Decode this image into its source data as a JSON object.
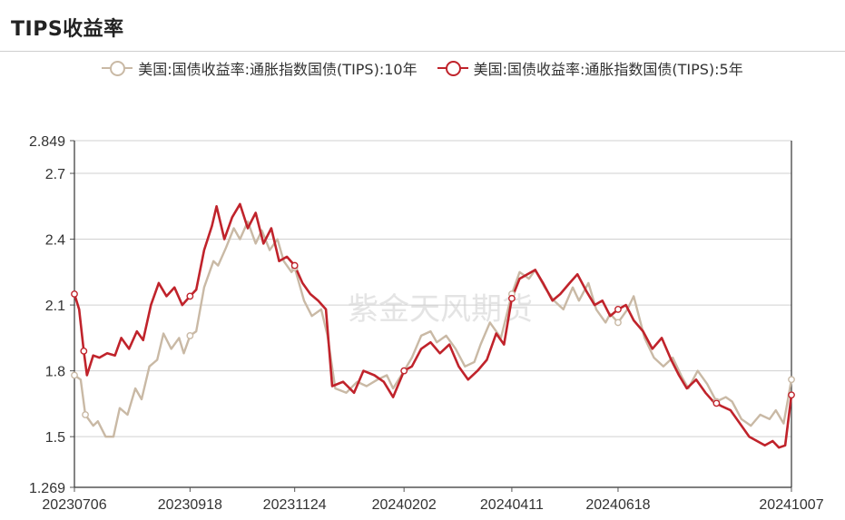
{
  "title": "TIPS收益率",
  "legend": [
    {
      "label": "美国:国债收益率:通胀指数国债(TIPS):10年",
      "color": "#c9b9a5"
    },
    {
      "label": "美国:国债收益率:通胀指数国债(TIPS):5年",
      "color": "#c0232b"
    }
  ],
  "watermark": "紫金天风期货",
  "chart_data": {
    "type": "line",
    "x_ticks": [
      "20230706",
      "20230918",
      "20231124",
      "20240202",
      "20240411",
      "20240618",
      "20241007"
    ],
    "y_ticks": [
      "2.849",
      "2.7",
      "2.4",
      "2.1",
      "1.8",
      "1.5",
      "1.269"
    ],
    "ylim": [
      1.269,
      2.849
    ],
    "xlim": [
      "20230706",
      "20241007"
    ],
    "grid": true,
    "legend_position": "top",
    "series": [
      {
        "name": "美国:国债收益率:通胀指数国债(TIPS):10年",
        "color": "#c9b9a5",
        "points": [
          [
            "20230706",
            1.78
          ],
          [
            "20230710",
            1.76
          ],
          [
            "20230713",
            1.6
          ],
          [
            "20230718",
            1.55
          ],
          [
            "20230721",
            1.57
          ],
          [
            "20230726",
            1.5
          ],
          [
            "20230731",
            1.5
          ],
          [
            "20230804",
            1.63
          ],
          [
            "20230809",
            1.6
          ],
          [
            "20230814",
            1.72
          ],
          [
            "20230818",
            1.67
          ],
          [
            "20230823",
            1.82
          ],
          [
            "20230828",
            1.85
          ],
          [
            "20230901",
            1.97
          ],
          [
            "20230906",
            1.9
          ],
          [
            "20230911",
            1.95
          ],
          [
            "20230914",
            1.88
          ],
          [
            "20230918",
            1.96
          ],
          [
            "20230922",
            1.98
          ],
          [
            "20230927",
            2.18
          ],
          [
            "20231003",
            2.3
          ],
          [
            "20231006",
            2.28
          ],
          [
            "20231011",
            2.36
          ],
          [
            "20231016",
            2.45
          ],
          [
            "20231020",
            2.4
          ],
          [
            "20231025",
            2.48
          ],
          [
            "20231030",
            2.38
          ],
          [
            "20231103",
            2.44
          ],
          [
            "20231108",
            2.35
          ],
          [
            "20231113",
            2.4
          ],
          [
            "20231117",
            2.3
          ],
          [
            "20231122",
            2.25
          ],
          [
            "20231124",
            2.27
          ],
          [
            "20231130",
            2.12
          ],
          [
            "20231205",
            2.05
          ],
          [
            "20231211",
            2.08
          ],
          [
            "20231215",
            1.96
          ],
          [
            "20231220",
            1.72
          ],
          [
            "20231227",
            1.7
          ],
          [
            "20240103",
            1.75
          ],
          [
            "20240109",
            1.73
          ],
          [
            "20240116",
            1.76
          ],
          [
            "20240122",
            1.78
          ],
          [
            "20240126",
            1.72
          ],
          [
            "20240202",
            1.8
          ],
          [
            "20240207",
            1.86
          ],
          [
            "20240213",
            1.96
          ],
          [
            "20240219",
            1.98
          ],
          [
            "20240223",
            1.93
          ],
          [
            "20240229",
            1.96
          ],
          [
            "20240306",
            1.9
          ],
          [
            "20240312",
            1.82
          ],
          [
            "20240318",
            1.84
          ],
          [
            "20240322",
            1.92
          ],
          [
            "20240328",
            2.02
          ],
          [
            "20240404",
            1.95
          ],
          [
            "20240411",
            2.15
          ],
          [
            "20240416",
            2.25
          ],
          [
            "20240422",
            2.22
          ],
          [
            "20240426",
            2.26
          ],
          [
            "20240502",
            2.18
          ],
          [
            "20240508",
            2.12
          ],
          [
            "20240514",
            2.08
          ],
          [
            "20240520",
            2.18
          ],
          [
            "20240524",
            2.12
          ],
          [
            "20240530",
            2.2
          ],
          [
            "20240604",
            2.08
          ],
          [
            "20240610",
            2.02
          ],
          [
            "20240613",
            2.06
          ],
          [
            "20240618",
            2.02
          ],
          [
            "20240624",
            2.08
          ],
          [
            "20240628",
            2.14
          ],
          [
            "20240705",
            1.95
          ],
          [
            "20240711",
            1.86
          ],
          [
            "20240717",
            1.82
          ],
          [
            "20240723",
            1.86
          ],
          [
            "20240729",
            1.77
          ],
          [
            "20240802",
            1.72
          ],
          [
            "20240808",
            1.8
          ],
          [
            "20240814",
            1.74
          ],
          [
            "20240820",
            1.66
          ],
          [
            "20240826",
            1.68
          ],
          [
            "20240830",
            1.66
          ],
          [
            "20240905",
            1.58
          ],
          [
            "20240911",
            1.55
          ],
          [
            "20240917",
            1.6
          ],
          [
            "20240923",
            1.58
          ],
          [
            "20240927",
            1.62
          ],
          [
            "20241002",
            1.56
          ],
          [
            "20241007",
            1.76
          ]
        ]
      },
      {
        "name": "美国:国债收益率:通胀指数国债(TIPS):5年",
        "color": "#c0232b",
        "points": [
          [
            "20230706",
            2.15
          ],
          [
            "20230709",
            2.08
          ],
          [
            "20230712",
            1.89
          ],
          [
            "20230714",
            1.78
          ],
          [
            "20230718",
            1.87
          ],
          [
            "20230722",
            1.86
          ],
          [
            "20230727",
            1.88
          ],
          [
            "20230801",
            1.87
          ],
          [
            "20230805",
            1.95
          ],
          [
            "20230810",
            1.9
          ],
          [
            "20230815",
            1.98
          ],
          [
            "20230819",
            1.94
          ],
          [
            "20230824",
            2.1
          ],
          [
            "20230829",
            2.2
          ],
          [
            "20230903",
            2.14
          ],
          [
            "20230908",
            2.18
          ],
          [
            "20230913",
            2.1
          ],
          [
            "20230918",
            2.14
          ],
          [
            "20230922",
            2.17
          ],
          [
            "20230927",
            2.35
          ],
          [
            "20231002",
            2.46
          ],
          [
            "20231005",
            2.55
          ],
          [
            "20231010",
            2.4
          ],
          [
            "20231015",
            2.5
          ],
          [
            "20231020",
            2.56
          ],
          [
            "20231025",
            2.45
          ],
          [
            "20231030",
            2.52
          ],
          [
            "20231104",
            2.38
          ],
          [
            "20231109",
            2.45
          ],
          [
            "20231114",
            2.3
          ],
          [
            "20231119",
            2.32
          ],
          [
            "20231124",
            2.28
          ],
          [
            "20231129",
            2.2
          ],
          [
            "20231204",
            2.15
          ],
          [
            "20231209",
            2.12
          ],
          [
            "20231214",
            2.08
          ],
          [
            "20231218",
            1.73
          ],
          [
            "20231225",
            1.75
          ],
          [
            "20240101",
            1.7
          ],
          [
            "20240107",
            1.8
          ],
          [
            "20240114",
            1.78
          ],
          [
            "20240120",
            1.75
          ],
          [
            "20240126",
            1.68
          ],
          [
            "20240202",
            1.8
          ],
          [
            "20240207",
            1.82
          ],
          [
            "20240213",
            1.9
          ],
          [
            "20240219",
            1.93
          ],
          [
            "20240225",
            1.88
          ],
          [
            "20240302",
            1.92
          ],
          [
            "20240308",
            1.82
          ],
          [
            "20240314",
            1.76
          ],
          [
            "20240320",
            1.8
          ],
          [
            "20240326",
            1.85
          ],
          [
            "20240401",
            1.97
          ],
          [
            "20240406",
            1.92
          ],
          [
            "20240411",
            2.13
          ],
          [
            "20240416",
            2.22
          ],
          [
            "20240421",
            2.24
          ],
          [
            "20240426",
            2.26
          ],
          [
            "20240501",
            2.2
          ],
          [
            "20240507",
            2.12
          ],
          [
            "20240512",
            2.15
          ],
          [
            "20240518",
            2.2
          ],
          [
            "20240523",
            2.24
          ],
          [
            "20240529",
            2.16
          ],
          [
            "20240603",
            2.1
          ],
          [
            "20240608",
            2.12
          ],
          [
            "20240613",
            2.05
          ],
          [
            "20240618",
            2.08
          ],
          [
            "20240623",
            2.1
          ],
          [
            "20240628",
            2.03
          ],
          [
            "20240704",
            1.98
          ],
          [
            "20240710",
            1.9
          ],
          [
            "20240716",
            1.95
          ],
          [
            "20240722",
            1.85
          ],
          [
            "20240727",
            1.78
          ],
          [
            "20240801",
            1.72
          ],
          [
            "20240807",
            1.76
          ],
          [
            "20240813",
            1.7
          ],
          [
            "20240818",
            1.66
          ],
          [
            "20240823",
            1.64
          ],
          [
            "20240829",
            1.62
          ],
          [
            "20240904",
            1.56
          ],
          [
            "20240910",
            1.5
          ],
          [
            "20240915",
            1.48
          ],
          [
            "20240920",
            1.46
          ],
          [
            "20240925",
            1.48
          ],
          [
            "20240929",
            1.45
          ],
          [
            "20241003",
            1.46
          ],
          [
            "20241007",
            1.69
          ]
        ]
      }
    ],
    "markers": [
      {
        "series": 0,
        "dates": [
          "20230706",
          "20230713",
          "20230918",
          "20231124",
          "20240202",
          "20240411",
          "20240618",
          "20240820",
          "20241007"
        ]
      },
      {
        "series": 1,
        "dates": [
          "20230706",
          "20230712",
          "20230918",
          "20231124",
          "20240202",
          "20240411",
          "20240618",
          "20240820",
          "20241007"
        ]
      }
    ]
  }
}
